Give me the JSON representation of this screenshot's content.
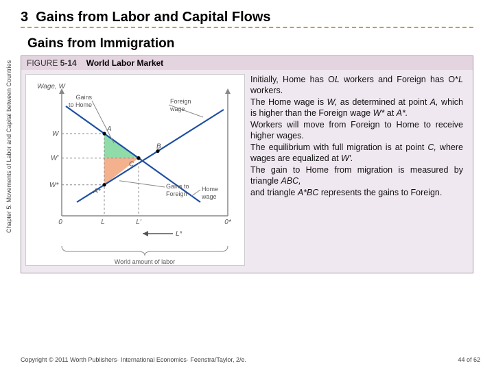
{
  "vertical_label": "Chapter 5:  Movements of Labor and Capital between Countries",
  "section_number": "3",
  "section_title": "Gains from Labor and Capital Flows",
  "subtitle": "Gains from Immigration",
  "figure_label_prefix": "FIGURE ",
  "figure_number": "5-14",
  "figure_title": "World Labor Market",
  "chart": {
    "y_axis": "Wage, W",
    "left_origin": "0",
    "right_origin": "0*",
    "labels": {
      "L": "L",
      "L_prime": "L′",
      "L_star": "L*",
      "W": "W",
      "W_prime": "W′",
      "W_star": "W*",
      "A": "A",
      "B": "B",
      "C": "C",
      "A_star": "A*",
      "gains_home": "Gains\nto Home",
      "gains_foreign": "Gains to\nForeign",
      "home_wage": "Home\nwage",
      "foreign_wage": "Foreign\nwage",
      "world_labor": "World amount of labor"
    },
    "colors": {
      "axis": "#888888",
      "home_line": "#1e4fa3",
      "foreign_line": "#1e4fa3",
      "tri_left": "#7bd69a",
      "tri_right": "#f2a37a",
      "guide": "#888888"
    }
  },
  "description": {
    "p1a": "Initially, Home has O",
    "p1b": " workers and Foreign has O*",
    "p1c": " workers.",
    "p1_L": "L",
    "p2a": "The Home wage is ",
    "p2b": " as determined at point ",
    "p2c": " which is higher than the Foreign wage ",
    "p2d": " at ",
    "p2_W": "W,",
    "p2_A": "A,",
    "p2_Wstar": "W*",
    "p2_Astar": "A*.",
    "p3": "Workers will move from Foreign to Home to receive higher wages.",
    "p4a": "The equilibrium with full migration is at point ",
    "p4b": " where wages are equalized at ",
    "p4_C": "C,",
    "p4_Wprime": "W′.",
    "p5a": "The gain to Home from migration is measured by triangle ",
    "p5_ABC": "ABC,",
    "p6a": "and triangle ",
    "p6b": " represents the gains to Foreign.",
    "p6_AstarBC": "A*BC"
  },
  "footer": {
    "copyright": "Copyright © 2011 Worth Publishers· International Economics· Feenstra/Taylor, 2/e.",
    "page": "44 of 62"
  }
}
